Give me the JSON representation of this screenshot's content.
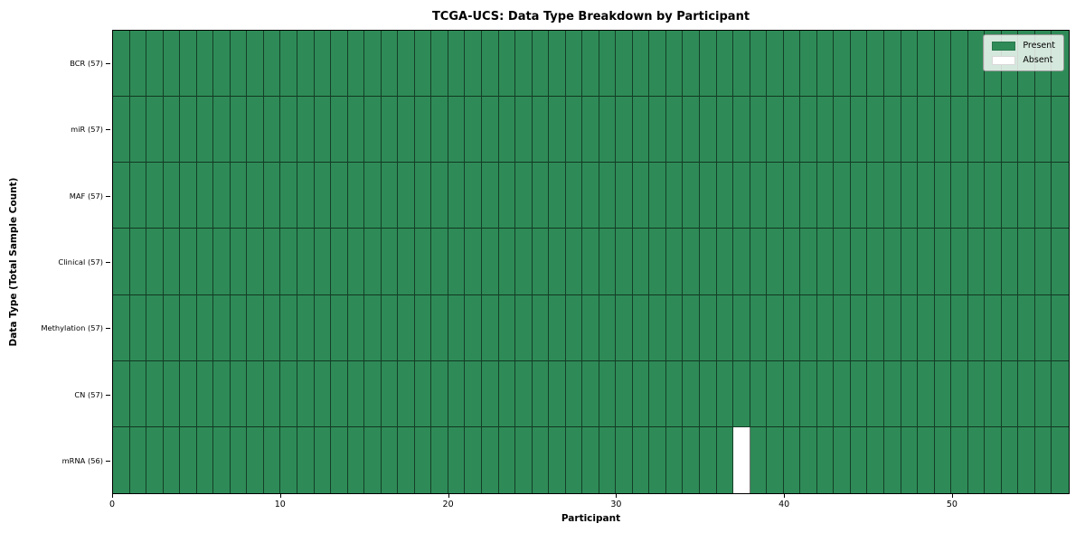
{
  "chart_data": {
    "type": "heatmap",
    "title": "TCGA-UCS: Data Type Breakdown by Participant",
    "xlabel": "Participant",
    "ylabel": "Data Type (Total Sample Count)",
    "n_participants": 57,
    "xlim": [
      0,
      57
    ],
    "x_ticks": [
      0,
      10,
      20,
      30,
      40,
      50
    ],
    "rows": [
      {
        "label": "BCR (57)",
        "data_type": "BCR",
        "present_count": 57,
        "absent_participants": []
      },
      {
        "label": "miR (57)",
        "data_type": "miR",
        "present_count": 57,
        "absent_participants": []
      },
      {
        "label": "MAF (57)",
        "data_type": "MAF",
        "present_count": 57,
        "absent_participants": []
      },
      {
        "label": "Clinical (57)",
        "data_type": "Clinical",
        "present_count": 57,
        "absent_participants": []
      },
      {
        "label": "Methylation (57)",
        "data_type": "Methylation",
        "present_count": 57,
        "absent_participants": []
      },
      {
        "label": "CN (57)",
        "data_type": "CN",
        "present_count": 57,
        "absent_participants": []
      },
      {
        "label": "mRNA (56)",
        "data_type": "mRNA",
        "present_count": 56,
        "absent_participants": [
          37
        ]
      }
    ],
    "legend": [
      {
        "label": "Present",
        "color": "#2e8b57"
      },
      {
        "label": "Absent",
        "color": "#ffffff"
      }
    ],
    "colors": {
      "present": "#2e8b57",
      "absent": "#ffffff"
    },
    "grid": true,
    "legend_position": "upper right"
  }
}
